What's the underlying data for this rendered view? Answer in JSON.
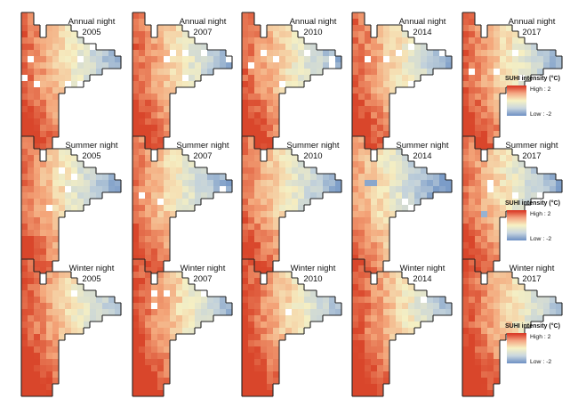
{
  "figure": {
    "rows": [
      {
        "season": "Annual night",
        "years": [
          "2005",
          "2007",
          "2010",
          "2014",
          "2017"
        ]
      },
      {
        "season": "Summer night",
        "years": [
          "2005",
          "2007",
          "2010",
          "2014",
          "2017"
        ]
      },
      {
        "season": "Winter night",
        "years": [
          "2005",
          "2007",
          "2010",
          "2014",
          "2017"
        ]
      }
    ]
  },
  "legend": {
    "title": "SUHI intensity (°C)",
    "high_label": "High : 2",
    "low_label": "Low : -2",
    "high_value": 2,
    "low_value": -2,
    "colors": [
      "#d7301f",
      "#f4a582",
      "#f7f2c4",
      "#c9d6df",
      "#6c8fc3"
    ]
  },
  "colors": {
    "hot": "#d9462b",
    "warm": "#f4a67a",
    "neutral": "#f5efc3",
    "cool": "#c3d2db",
    "cold": "#7b9cc8",
    "nodata": "#ffffff",
    "border": "#222222"
  }
}
